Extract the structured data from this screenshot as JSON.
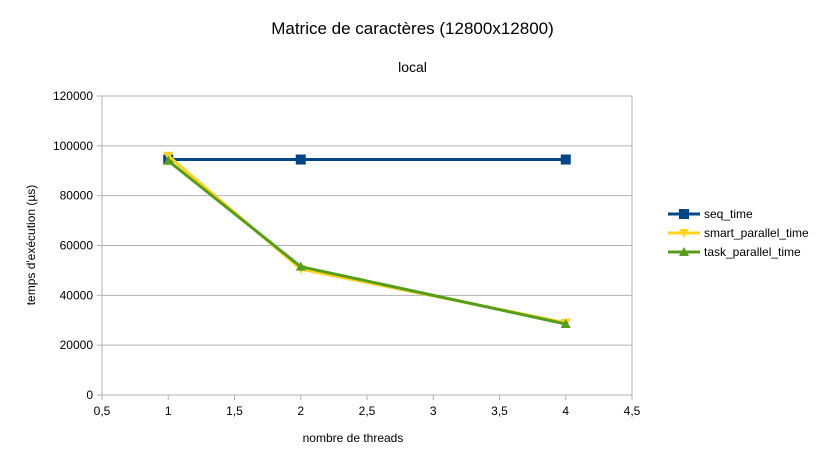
{
  "chart_data": {
    "type": "line",
    "title": "Matrice de caractères (12800x12800)",
    "subtitle": "local",
    "xlabel": "nombre de threads",
    "ylabel": "temps d'exécution (µs)",
    "xlim": [
      0.5,
      4.5
    ],
    "ylim": [
      0,
      120000
    ],
    "x_ticks": [
      0.5,
      1,
      1.5,
      2,
      2.5,
      3,
      3.5,
      4,
      4.5
    ],
    "x_tick_labels": [
      "0,5",
      "1",
      "1,5",
      "2",
      "2,5",
      "3",
      "3,5",
      "4",
      "4,5"
    ],
    "y_ticks": [
      0,
      20000,
      40000,
      60000,
      80000,
      100000,
      120000
    ],
    "y_tick_labels": [
      "0",
      "20000",
      "40000",
      "60000",
      "80000",
      "100000",
      "120000"
    ],
    "grid": "horizontal",
    "legend_position": "right",
    "x": [
      1,
      2,
      4
    ],
    "series": [
      {
        "name": "seq_time",
        "values": [
          94500,
          94500,
          94500
        ],
        "color": "#004586",
        "marker": "square"
      },
      {
        "name": "smart_parallel_time",
        "values": [
          96000,
          50500,
          29000
        ],
        "color": "#ffd320",
        "marker": "triangle-down"
      },
      {
        "name": "task_parallel_time",
        "values": [
          94000,
          51500,
          28500
        ],
        "color": "#579d1c",
        "marker": "triangle-up"
      }
    ]
  }
}
